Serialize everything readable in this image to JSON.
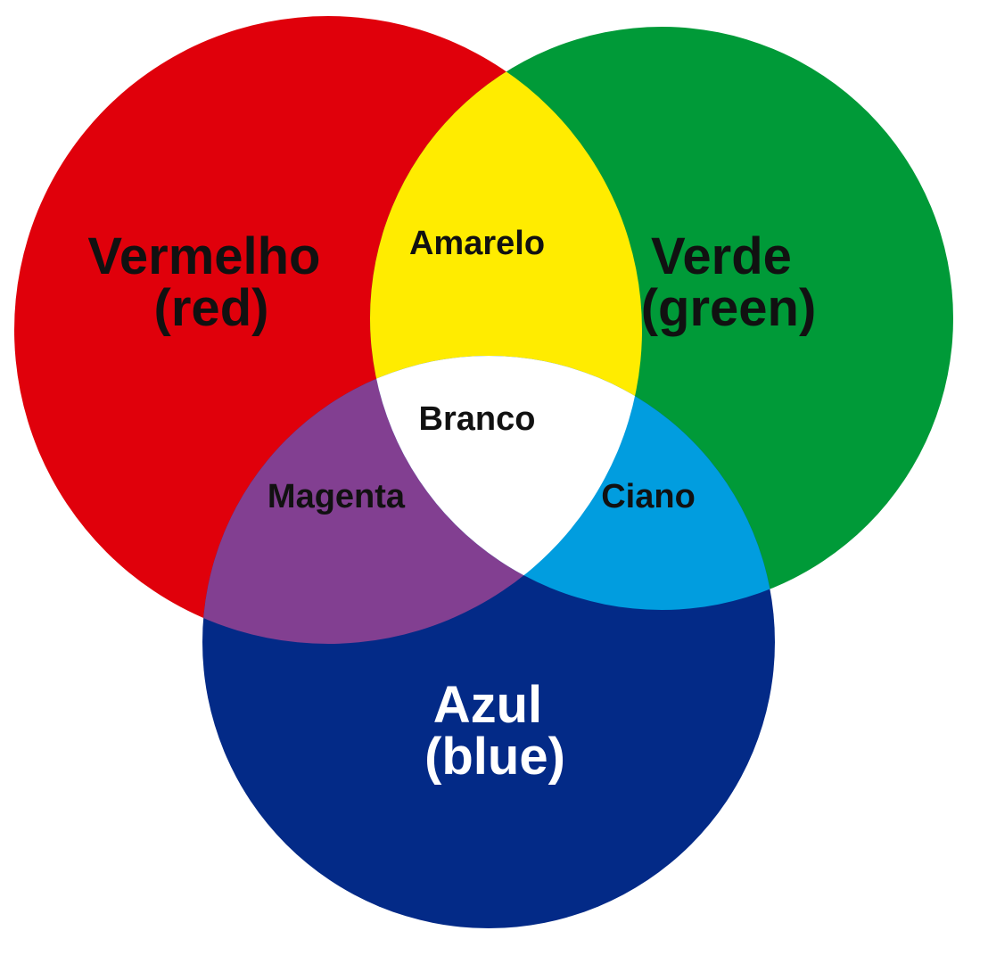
{
  "diagram": {
    "circles": {
      "red": {
        "line1": "Vermelho",
        "line2": "(red)",
        "color": "#e0000b",
        "text_color": "#111111"
      },
      "green": {
        "line1": "Verde",
        "line2": "(green)",
        "color": "#009a38",
        "text_color": "#111111"
      },
      "blue": {
        "line1": "Azul",
        "line2": "(blue)",
        "color": "#032a87",
        "text_color": "#ffffff"
      }
    },
    "overlaps": {
      "yellow": {
        "label": "Amarelo",
        "color": "#ffec00"
      },
      "magenta": {
        "label": "Magenta",
        "color": "#823f91"
      },
      "cyan": {
        "label": "Ciano",
        "color": "#019ddf"
      },
      "white": {
        "label": "Branco",
        "color": "#ffffff"
      }
    },
    "overlap_text_color": "#111111"
  }
}
